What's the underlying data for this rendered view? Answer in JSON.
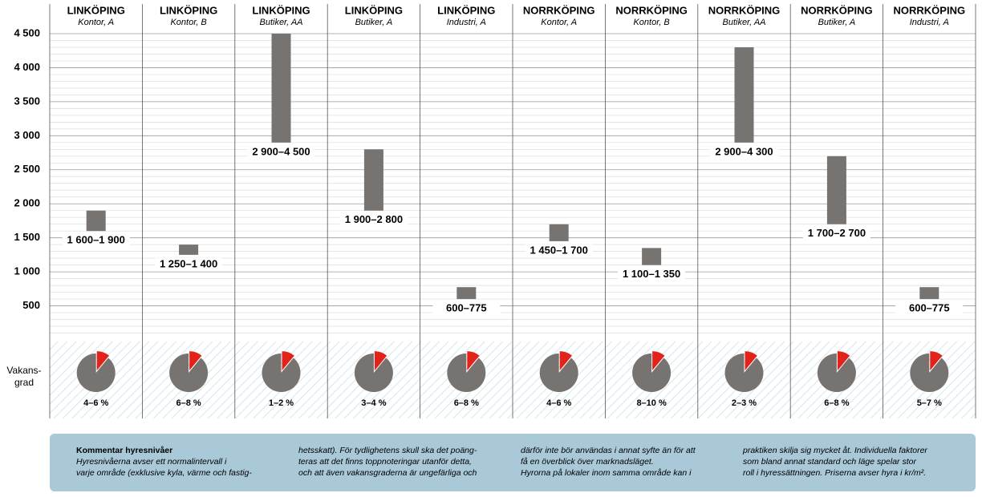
{
  "chart_data": {
    "type": "range-bar",
    "categories": [
      "LINKÖPING",
      "LINKÖPING",
      "LINKÖPING",
      "LINKÖPING",
      "LINKÖPING",
      "NORRKÖPING",
      "NORRKÖPING",
      "NORRKÖPING",
      "NORRKÖPING",
      "NORRKÖPING"
    ],
    "subcategories": [
      "Kontor, A",
      "Kontor, B",
      "Butiker, AA",
      "Butiker, A",
      "Industri, A",
      "Kontor, A",
      "Kontor, B",
      "Butiker, AA",
      "Butiker, A",
      "Industri, A"
    ],
    "low": [
      1600,
      1250,
      2900,
      1900,
      600,
      1450,
      1100,
      2900,
      1700,
      600
    ],
    "high": [
      1900,
      1400,
      4500,
      2800,
      775,
      1700,
      1350,
      4300,
      2700,
      775
    ],
    "value_labels": [
      "1 600–1 900",
      "1 250–1 400",
      "2 900–4 500",
      "1 900–2 800",
      "600–775",
      "1 450–1 700",
      "1 100–1 350",
      "2 900–4 300",
      "1 700–2 700",
      "600–775"
    ],
    "color": "#777371",
    "ylim": [
      0,
      4500
    ],
    "yticks": [
      {
        "value": 500,
        "label": "500"
      },
      {
        "value": 1000,
        "label": "1 000"
      },
      {
        "value": 1500,
        "label": "1 500"
      },
      {
        "value": 2000,
        "label": "2 000"
      },
      {
        "value": 2500,
        "label": "2 500"
      },
      {
        "value": 3000,
        "label": "3 000"
      },
      {
        "value": 3500,
        "label": "3 500"
      },
      {
        "value": 4000,
        "label": "4 000"
      },
      {
        "value": 4500,
        "label": "4 500"
      }
    ],
    "grid": true,
    "vacancy_title": [
      "Vakans-",
      "grad"
    ],
    "vacancy_labels": [
      "4–6 %",
      "6–8 %",
      "1–2 %",
      "3–4 %",
      "6–8 %",
      "4–6 %",
      "8–10 %",
      "2–3 %",
      "6–8 %",
      "5–7 %"
    ],
    "vacancy_slice": [
      11,
      11,
      11,
      11,
      11,
      11,
      11,
      11,
      11,
      11
    ],
    "vacancy_colors": [
      "#777371",
      "#e2231a"
    ]
  },
  "comment": {
    "title": "Kommentar hyresnivåer",
    "columns": [
      [
        "Hyresnivåerna avser ett normalintervall i",
        "varje område (exklusive kyla, värme och fastig-"
      ],
      [
        "hetsskatt). För tydlighetens skull ska det poäng-",
        "teras att det finns toppnoteringar utanför detta,",
        "och att även vakansgraderna är ungefärliga och"
      ],
      [
        "därför inte bör användas i annat syfte än för att",
        "få en överblick över marknadsläget.",
        "   Hyrorna på lokaler inom samma område kan i"
      ],
      [
        "praktiken skilja sig mycket åt. Individuella faktorer",
        "som bland annat standard och läge spelar stor",
        "roll i hyressättningen. Priserna avser hyra i kr/m²."
      ]
    ]
  }
}
